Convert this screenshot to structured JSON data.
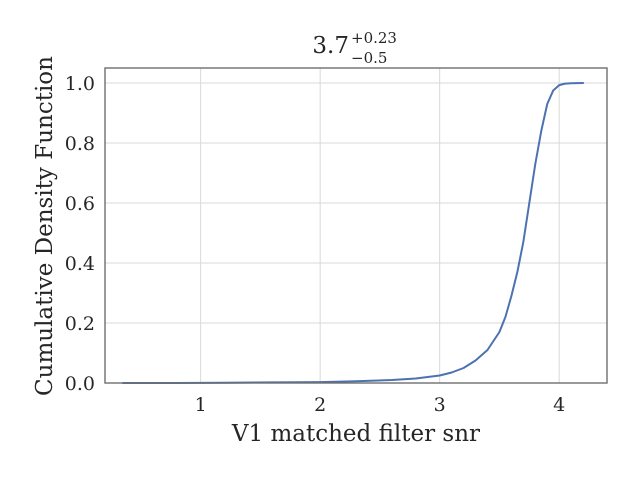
{
  "chart_data": {
    "type": "line",
    "title": {
      "value": "3.7",
      "upper": "+0.23",
      "lower": "−0.5"
    },
    "xlabel": "V1 matched filter snr",
    "ylabel": "Cumulative Density Function",
    "xlim": [
      0.2,
      4.4
    ],
    "ylim": [
      0.0,
      1.05
    ],
    "xticks": [
      1,
      2,
      3,
      4
    ],
    "xtick_labels": [
      "1",
      "2",
      "3",
      "4"
    ],
    "yticks": [
      0.0,
      0.2,
      0.4,
      0.6,
      0.8,
      1.0
    ],
    "ytick_labels": [
      "0.0",
      "0.2",
      "0.4",
      "0.6",
      "0.8",
      "1.0"
    ],
    "grid": true,
    "series": [
      {
        "color": "#4c72b0",
        "x": [
          0.35,
          0.8,
          1.2,
          1.6,
          2.0,
          2.3,
          2.6,
          2.8,
          3.0,
          3.1,
          3.2,
          3.3,
          3.4,
          3.5,
          3.55,
          3.6,
          3.65,
          3.7,
          3.75,
          3.8,
          3.85,
          3.9,
          3.95,
          4.0,
          4.05,
          4.1,
          4.2
        ],
        "y": [
          0.0,
          0.0,
          0.001,
          0.002,
          0.003,
          0.006,
          0.01,
          0.015,
          0.025,
          0.035,
          0.05,
          0.075,
          0.11,
          0.17,
          0.22,
          0.29,
          0.37,
          0.47,
          0.6,
          0.73,
          0.84,
          0.93,
          0.975,
          0.993,
          0.998,
          0.999,
          1.0
        ]
      }
    ]
  }
}
